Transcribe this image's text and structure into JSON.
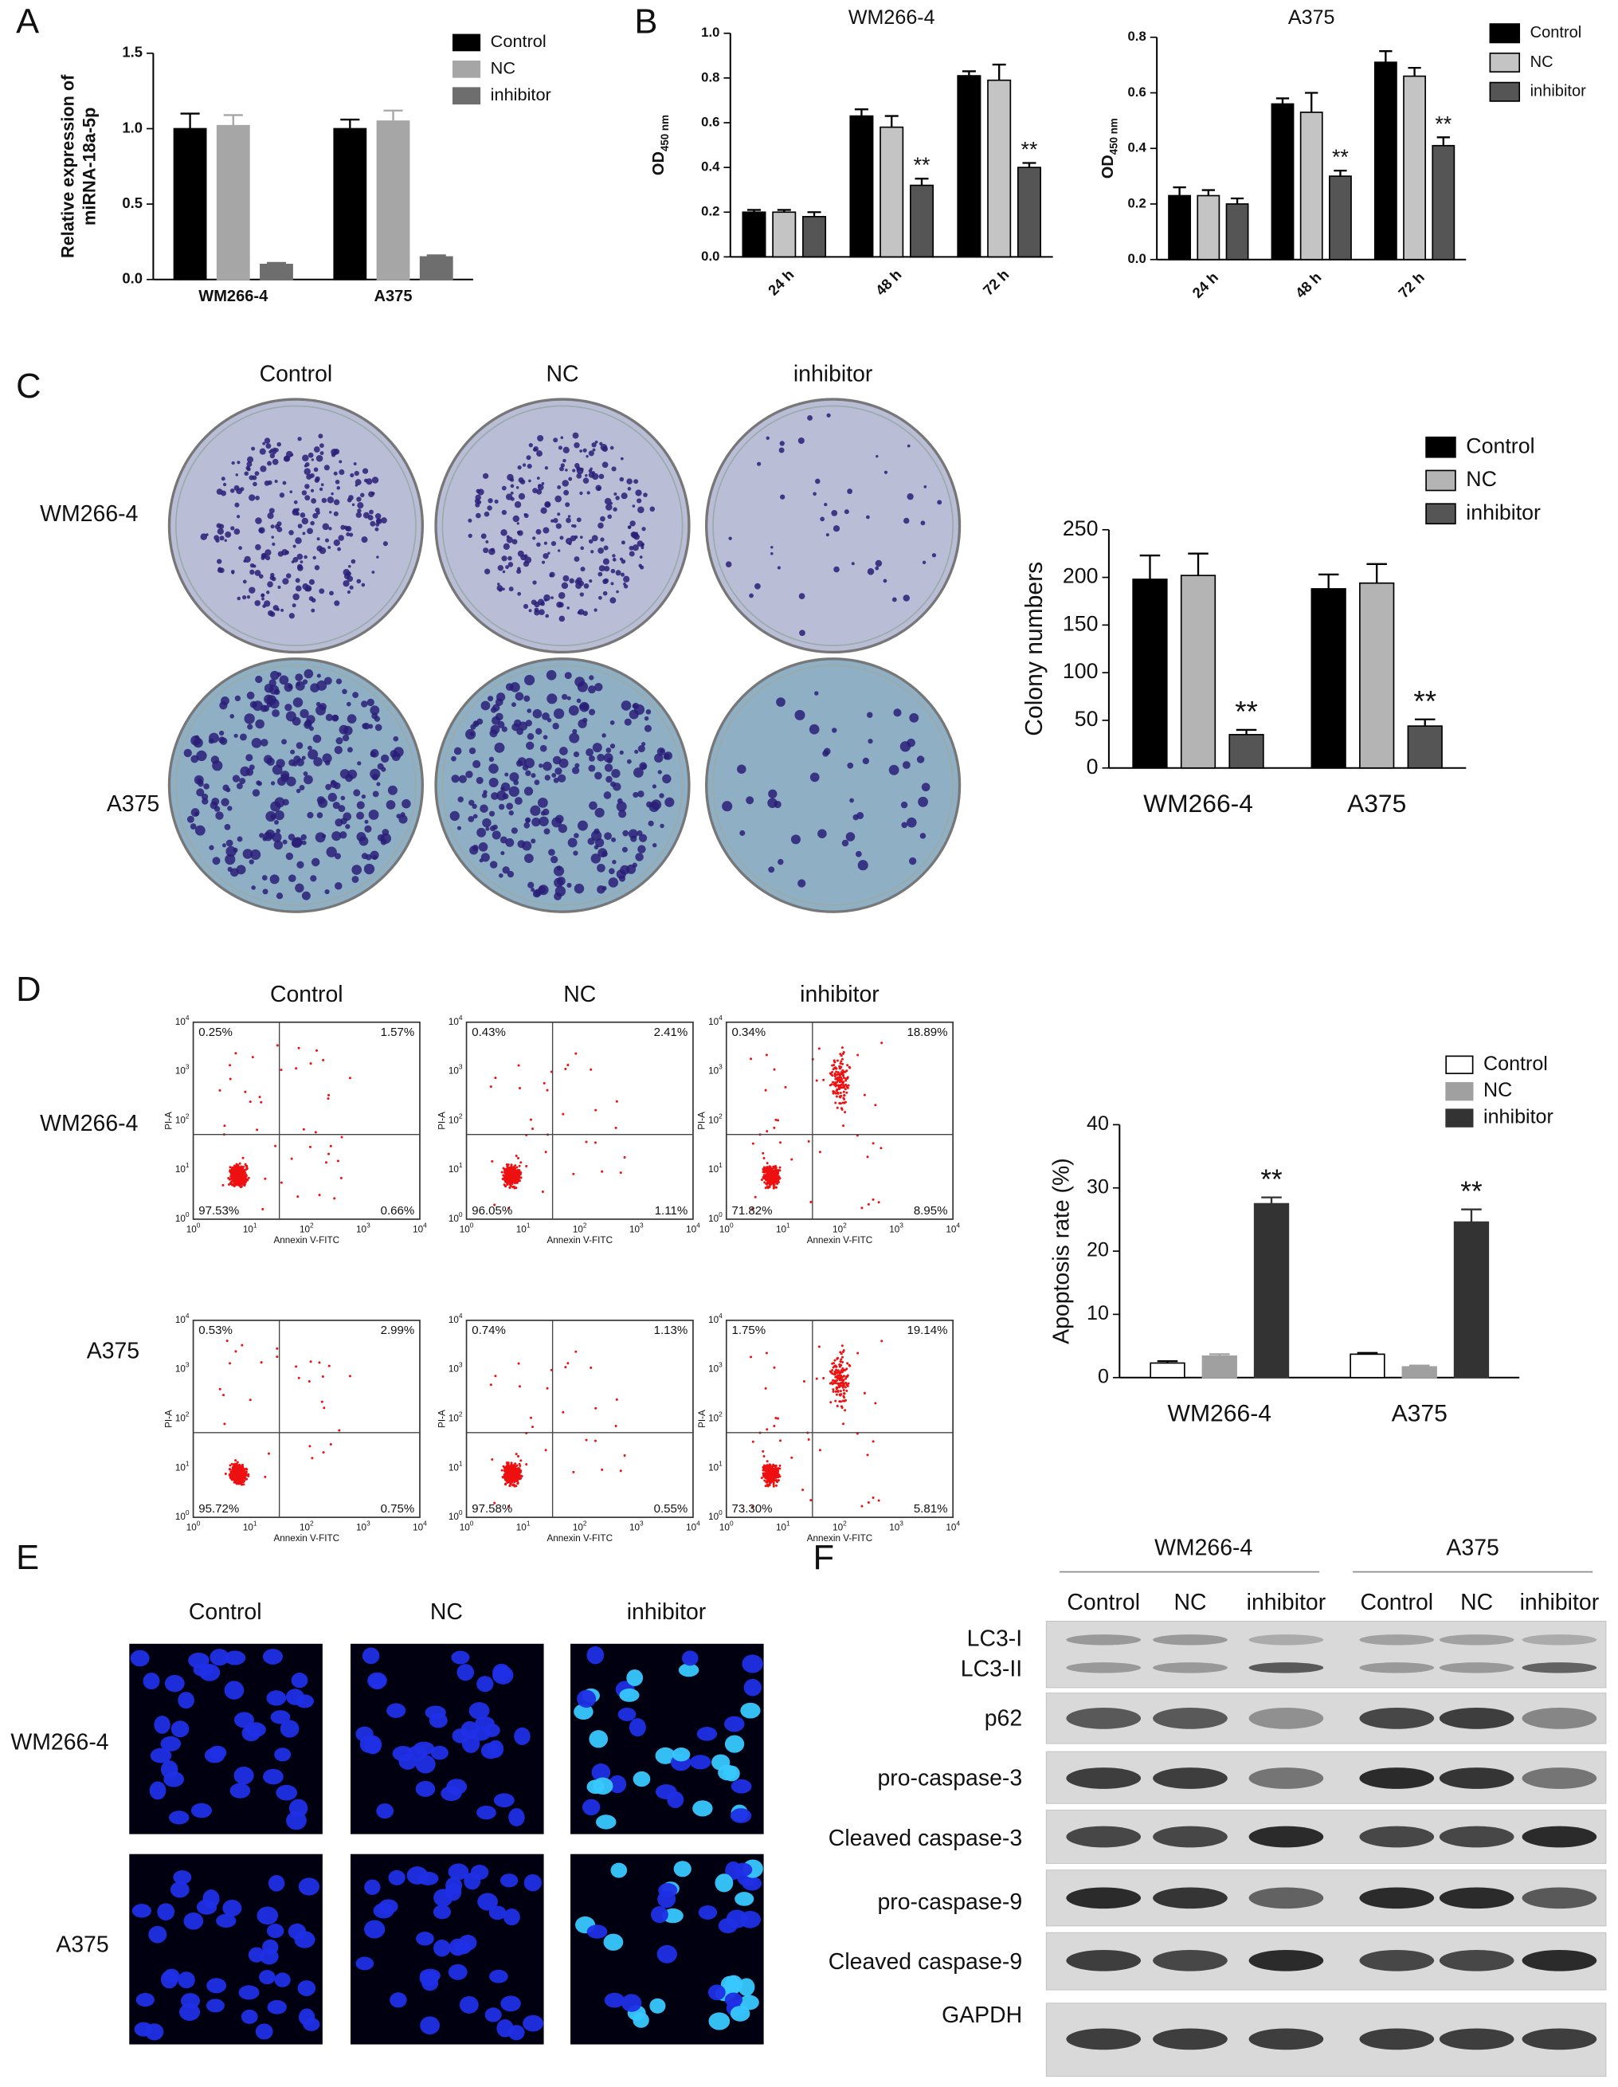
{
  "panel_labels": [
    "A",
    "B",
    "C",
    "D",
    "E",
    "F"
  ],
  "chart_data": [
    {
      "type": "bar",
      "y_label": [
        "Relative expression of",
        "miRNA-18a-5p"
      ],
      "categories": [
        "WM266-4",
        "A375"
      ],
      "series": [
        {
          "name": "Control",
          "color": "#000000",
          "edgecolor": "#000000",
          "values": [
            1.0,
            1.0
          ],
          "errors": [
            0.1,
            0.06
          ]
        },
        {
          "name": "NC",
          "color": "#a6a6a6",
          "edgecolor": "#a6a6a6",
          "values": [
            1.02,
            1.05
          ],
          "errors": [
            0.07,
            0.07
          ]
        },
        {
          "name": "inhibitor",
          "color": "#6e6e6e",
          "edgecolor": "#6e6e6e",
          "values": [
            0.1,
            0.15
          ],
          "errors": [
            0.01,
            0.01
          ]
        }
      ],
      "ylim": [
        0,
        1.5
      ],
      "yticks": [
        {
          "value": 0,
          "label": "0.0"
        },
        0.5,
        {
          "value": 1,
          "label": "1.0"
        },
        1.5
      ],
      "legend": "top-right",
      "grid": false
    },
    {
      "type": "bar",
      "title": "WM266-4",
      "y_label": "OD",
      "y_label_subscript": "450 nm",
      "categories": [
        "24 h",
        "48 h",
        "72 h"
      ],
      "x_label_rotation": -45,
      "series": [
        {
          "name": "Control",
          "color": "#000000",
          "edgecolor": "#000000",
          "values": [
            0.2,
            0.63,
            0.81
          ],
          "errors": [
            0.01,
            0.03,
            0.02
          ]
        },
        {
          "name": "NC",
          "color": "#c4c4c4",
          "edgecolor": "#000000",
          "values": [
            0.2,
            0.58,
            0.79
          ],
          "errors": [
            0.01,
            0.05,
            0.07
          ]
        },
        {
          "name": "inhibitor",
          "color": "#555555",
          "edgecolor": "#000000",
          "values": [
            0.18,
            0.32,
            0.4
          ],
          "errors": [
            0.02,
            0.03,
            0.02
          ],
          "significance": [
            null,
            "**",
            "**"
          ]
        }
      ],
      "ylim": [
        0,
        1
      ],
      "yticks": [
        {
          "value": 0,
          "label": "0.0"
        },
        0.2,
        0.4,
        0.6,
        0.8,
        {
          "value": 1,
          "label": "1.0"
        }
      ],
      "legend": "none",
      "grid": false
    },
    {
      "type": "bar",
      "title": "A375",
      "y_label": "OD",
      "y_label_subscript": "450 nm",
      "categories": [
        "24 h",
        "48 h",
        "72 h"
      ],
      "x_label_rotation": -45,
      "series": [
        {
          "name": "Control",
          "color": "#000000",
          "edgecolor": "#000000",
          "values": [
            0.23,
            0.56,
            0.71
          ],
          "errors": [
            0.03,
            0.02,
            0.04
          ]
        },
        {
          "name": "NC",
          "color": "#c4c4c4",
          "edgecolor": "#000000",
          "values": [
            0.23,
            0.53,
            0.66
          ],
          "errors": [
            0.02,
            0.07,
            0.03
          ]
        },
        {
          "name": "inhibitor",
          "color": "#555555",
          "edgecolor": "#000000",
          "values": [
            0.2,
            0.3,
            0.41
          ],
          "errors": [
            0.02,
            0.02,
            0.03
          ],
          "significance": [
            null,
            "**",
            "**"
          ]
        }
      ],
      "ylim": [
        0,
        0.8
      ],
      "yticks": [
        {
          "value": 0,
          "label": "0.0"
        },
        0.2,
        0.4,
        0.6,
        0.8
      ],
      "legend": "top-right",
      "grid": false
    },
    {
      "type": "bar",
      "y_label": "Colony numbers",
      "categories": [
        "WM266-4",
        "A375"
      ],
      "series": [
        {
          "name": "Control",
          "color": "#000000",
          "edgecolor": "#000000",
          "values": [
            198,
            188
          ],
          "errors": [
            25,
            15
          ]
        },
        {
          "name": "NC",
          "color": "#b4b4b4",
          "edgecolor": "#000000",
          "values": [
            202,
            194
          ],
          "errors": [
            23,
            20
          ]
        },
        {
          "name": "inhibitor",
          "color": "#555555",
          "edgecolor": "#000000",
          "values": [
            35,
            44
          ],
          "errors": [
            5,
            7
          ],
          "significance": [
            "**",
            "**"
          ]
        }
      ],
      "ylim": [
        0,
        250
      ],
      "yticks": [
        0,
        50,
        100,
        150,
        200,
        250
      ],
      "legend": "top-right",
      "grid": false
    },
    {
      "type": "bar",
      "y_label": "Apoptosis rate (%)",
      "categories": [
        "WM266-4",
        "A375"
      ],
      "series": [
        {
          "name": "Control",
          "color": "#ffffff",
          "edgecolor": "#000000",
          "values": [
            2.3,
            3.7
          ],
          "errors": [
            0.3,
            0.2
          ]
        },
        {
          "name": "NC",
          "color": "#a0a0a0",
          "edgecolor": "#a0a0a0",
          "values": [
            3.4,
            1.7
          ],
          "errors": [
            0.3,
            0.2
          ]
        },
        {
          "name": "inhibitor",
          "color": "#333333",
          "edgecolor": "#333333",
          "values": [
            27.5,
            24.6
          ],
          "errors": [
            1.0,
            2.0
          ],
          "significance": [
            "**",
            "**"
          ]
        }
      ],
      "ylim": [
        0,
        40
      ],
      "yticks": [
        0,
        10,
        20,
        30,
        40
      ],
      "legend": "top-right",
      "grid": false
    }
  ],
  "colony_assay": {
    "columns": [
      "Control",
      "NC",
      "inhibitor"
    ],
    "rows": [
      "WM266-4",
      "A375"
    ]
  },
  "flow_cytometry": {
    "columns": [
      "Control",
      "NC",
      "inhibitor"
    ],
    "rows": [
      "WM266-4",
      "A375"
    ],
    "x_label": "Annexin V-FITC",
    "y_label": "PI-A",
    "tick_base": "10",
    "tick_exponents": [
      "0",
      "1",
      "2",
      "3",
      "4"
    ],
    "plots": [
      [
        [
          "0.25%",
          "1.57%",
          "97.53%",
          "0.66%"
        ],
        [
          "0.43%",
          "2.41%",
          "96.05%",
          "1.11%"
        ],
        [
          "0.34%",
          "18.89%",
          "71.82%",
          "8.95%"
        ]
      ],
      [
        [
          "0.53%",
          "2.99%",
          "95.72%",
          "0.75%"
        ],
        [
          "0.74%",
          "1.13%",
          "97.58%",
          "0.55%"
        ],
        [
          "1.75%",
          "19.14%",
          "73.30%",
          "5.81%"
        ]
      ]
    ]
  },
  "hoechst_staining": {
    "columns": [
      "Control",
      "NC",
      "inhibitor"
    ],
    "rows": [
      "WM266-4",
      "A375"
    ]
  },
  "western_blot": {
    "groups": [
      "WM266-4",
      "A375"
    ],
    "lanes": [
      "Control",
      "NC",
      "inhibitor",
      "Control",
      "NC",
      "inhibitor"
    ],
    "proteins": [
      "LC3-I",
      "LC3-II",
      "p62",
      "pro-caspase-3",
      "Cleaved caspase-3",
      "pro-caspase-9",
      "Cleaved caspase-9",
      "GAPDH"
    ]
  }
}
